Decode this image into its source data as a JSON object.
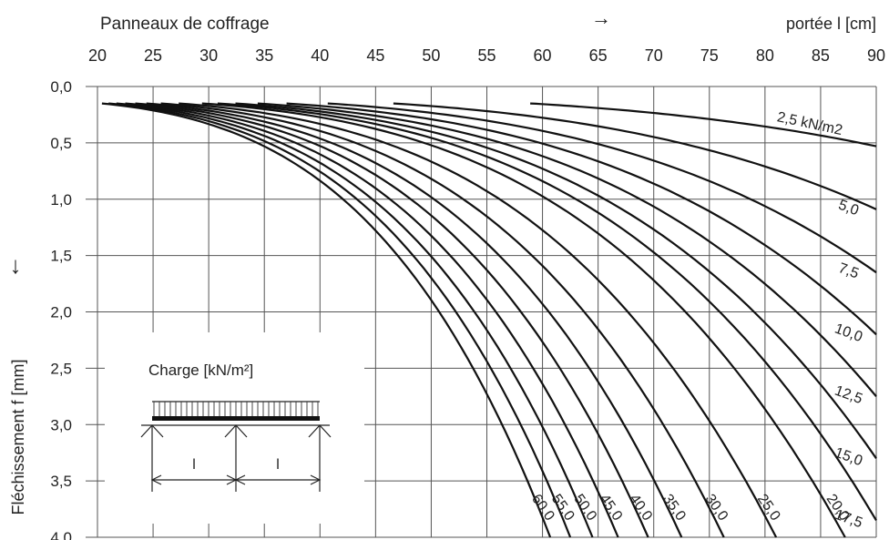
{
  "chart_data": {
    "type": "line",
    "title": "Panneaux de coffrage",
    "xlabel": "portée l [cm]",
    "ylabel": "Fléchissement f [mm]",
    "x_ticks": [
      "20",
      "25",
      "30",
      "35",
      "40",
      "45",
      "50",
      "55",
      "60",
      "65",
      "70",
      "75",
      "80",
      "85",
      "90"
    ],
    "y_ticks": [
      "0,0",
      "0,5",
      "1,0",
      "1,5",
      "2,0",
      "2,5",
      "3,0",
      "3,5",
      "4,0"
    ],
    "xlim": [
      20,
      90
    ],
    "ylim": [
      0,
      4
    ],
    "y_inverted": true,
    "x_axis_position": "top",
    "grid": true,
    "series": [
      {
        "name": "2,5 kN/m2",
        "x": [
          58.9,
          90
        ],
        "y": [
          0.15,
          0.53
        ]
      },
      {
        "name": "5,0",
        "x": [
          46.6,
          90
        ],
        "y": [
          0.15,
          1.09
        ]
      },
      {
        "name": "7,5",
        "x": [
          40.7,
          90
        ],
        "y": [
          0.15,
          1.65
        ]
      },
      {
        "name": "10,0",
        "x": [
          37.0,
          90
        ],
        "y": [
          0.15,
          2.2
        ]
      },
      {
        "name": "12,5",
        "x": [
          34.4,
          90
        ],
        "y": [
          0.15,
          2.75
        ]
      },
      {
        "name": "15,0",
        "x": [
          32.4,
          90
        ],
        "y": [
          0.15,
          3.3
        ]
      },
      {
        "name": "17,5",
        "x": [
          30.8,
          90
        ],
        "y": [
          0.15,
          3.85
        ]
      },
      {
        "name": "20,0",
        "x": [
          29.4,
          87.2
        ],
        "y": [
          0.15,
          4.0
        ]
      },
      {
        "name": "25,0",
        "x": [
          27.3,
          81.0
        ],
        "y": [
          0.15,
          4.0
        ]
      },
      {
        "name": "30,0",
        "x": [
          25.7,
          76.3
        ],
        "y": [
          0.15,
          4.0
        ]
      },
      {
        "name": "35,0",
        "x": [
          24.4,
          72.5
        ],
        "y": [
          0.15,
          4.0
        ]
      },
      {
        "name": "40,0",
        "x": [
          23.4,
          69.5
        ],
        "y": [
          0.15,
          4.0
        ]
      },
      {
        "name": "45,0",
        "x": [
          22.5,
          66.8
        ],
        "y": [
          0.15,
          4.0
        ]
      },
      {
        "name": "50,0",
        "x": [
          21.7,
          64.5
        ],
        "y": [
          0.15,
          4.0
        ]
      },
      {
        "name": "55,0",
        "x": [
          21.0,
          62.5
        ],
        "y": [
          0.15,
          4.0
        ]
      },
      {
        "name": "60,0",
        "x": [
          20.4,
          60.7
        ],
        "y": [
          0.15,
          4.0
        ]
      }
    ],
    "annotations": {
      "arrow_right": "→",
      "arrow_down": "↓",
      "inset_label": "Charge [kN/m²]",
      "span_label_1": "l",
      "span_label_2": "l"
    }
  }
}
